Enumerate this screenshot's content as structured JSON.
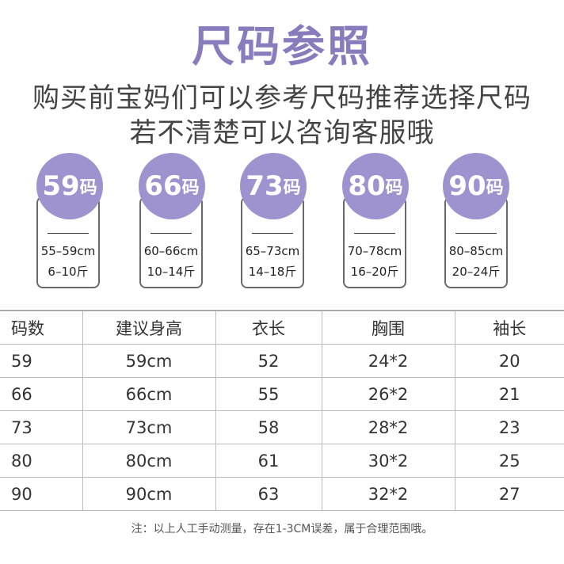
{
  "title": "尺码参照",
  "subtitle_lines": [
    "购买前宝妈们可以参考尺码推荐选择尺码",
    "若不清楚可以咨询客服哦"
  ],
  "size_cards": [
    {
      "size": "59",
      "unit": "码",
      "height": "55–59cm",
      "weight": "6–10斤"
    },
    {
      "size": "66",
      "unit": "码",
      "height": "60–66cm",
      "weight": "10–14斤"
    },
    {
      "size": "73",
      "unit": "码",
      "height": "65–73cm",
      "weight": "14–18斤"
    },
    {
      "size": "80",
      "unit": "码",
      "height": "70–78cm",
      "weight": "16–20斤"
    },
    {
      "size": "90",
      "unit": "码",
      "height": "80–85cm",
      "weight": "20–24斤"
    }
  ],
  "table": {
    "headers": [
      "码数",
      "建议身高",
      "衣长",
      "胸围",
      "袖长"
    ],
    "rows": [
      [
        "59",
        "59cm",
        "52",
        "24*2",
        "20"
      ],
      [
        "66",
        "66cm",
        "55",
        "26*2",
        "21"
      ],
      [
        "73",
        "73cm",
        "58",
        "28*2",
        "23"
      ],
      [
        "80",
        "80cm",
        "61",
        "30*2",
        "25"
      ],
      [
        "90",
        "90cm",
        "63",
        "32*2",
        "27"
      ]
    ]
  },
  "note": "注：以上人工手动测量，存在1-3CM误差，属于合理范围哦。",
  "colors": {
    "accent": "#9e93cf",
    "title": "#8a7bbd",
    "text": "#333333"
  }
}
